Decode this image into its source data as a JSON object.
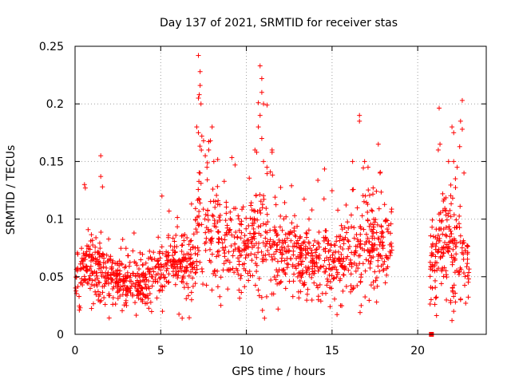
{
  "chart_data": {
    "type": "scatter",
    "title": "Day 137 of 2021, SRMTID for receiver stas",
    "xlabel": "GPS time / hours",
    "ylabel": "SRMTID / TECUs",
    "xlim": [
      0,
      24
    ],
    "ylim": [
      0,
      0.25
    ],
    "xticks": [
      0,
      5,
      10,
      15,
      20
    ],
    "yticks": [
      0,
      0.05,
      0.1,
      0.15,
      0.2,
      0.25
    ],
    "xtick_labels": [
      "0",
      "5",
      "10",
      "15",
      "20"
    ],
    "ytick_labels": [
      "0",
      "0.05",
      "0.1",
      "0.15",
      "0.2",
      "0.25"
    ],
    "grid": true,
    "marker": "+",
    "color": "#ff0000",
    "series": [
      {
        "name": "SRMTID",
        "segments": [
          {
            "x_start": 0.0,
            "x_end": 18.5,
            "baseline": [
              [
                0,
                0.05
              ],
              [
                1,
                0.055
              ],
              [
                2,
                0.052
              ],
              [
                3,
                0.046
              ],
              [
                4,
                0.043
              ],
              [
                5,
                0.055
              ],
              [
                6,
                0.062
              ],
              [
                6.9,
                0.06
              ],
              [
                7.3,
                0.1
              ],
              [
                8,
                0.085
              ],
              [
                9,
                0.078
              ],
              [
                10,
                0.072
              ],
              [
                10.6,
                0.085
              ],
              [
                11.5,
                0.08
              ],
              [
                12,
                0.075
              ],
              [
                13,
                0.065
              ],
              [
                14,
                0.068
              ],
              [
                15,
                0.063
              ],
              [
                16,
                0.066
              ],
              [
                17,
                0.08
              ],
              [
                18.5,
                0.07
              ]
            ],
            "spread": [
              [
                0,
                0.012
              ],
              [
                1,
                0.014
              ],
              [
                2,
                0.013
              ],
              [
                3,
                0.011
              ],
              [
                4,
                0.01
              ],
              [
                5,
                0.012
              ],
              [
                6,
                0.014
              ],
              [
                7,
                0.016
              ],
              [
                7.3,
                0.03
              ],
              [
                8,
                0.022
              ],
              [
                9,
                0.018
              ],
              [
                10,
                0.018
              ],
              [
                10.6,
                0.024
              ],
              [
                11.5,
                0.02
              ],
              [
                12,
                0.018
              ],
              [
                13,
                0.015
              ],
              [
                14,
                0.016
              ],
              [
                15,
                0.015
              ],
              [
                16,
                0.017
              ],
              [
                17,
                0.02
              ],
              [
                18.5,
                0.018
              ]
            ],
            "count": 1400
          },
          {
            "x_start": 20.7,
            "x_end": 23.0,
            "baseline": [
              [
                20.7,
                0.06
              ],
              [
                21.5,
                0.085
              ],
              [
                22.0,
                0.075
              ],
              [
                22.5,
                0.07
              ],
              [
                23.0,
                0.065
              ]
            ],
            "spread": [
              [
                20.7,
                0.018
              ],
              [
                21.5,
                0.025
              ],
              [
                22.0,
                0.022
              ],
              [
                22.5,
                0.024
              ],
              [
                23.0,
                0.02
              ]
            ],
            "count": 190
          }
        ],
        "peaks": [
          [
            7.2,
            0.242
          ],
          [
            7.3,
            0.228
          ],
          [
            7.3,
            0.216
          ],
          [
            7.25,
            0.208
          ],
          [
            7.2,
            0.205
          ],
          [
            7.35,
            0.2
          ],
          [
            7.1,
            0.18
          ],
          [
            7.2,
            0.175
          ],
          [
            7.4,
            0.172
          ],
          [
            7.5,
            0.168
          ],
          [
            8.0,
            0.18
          ],
          [
            7.9,
            0.168
          ],
          [
            7.8,
            0.16
          ],
          [
            7.6,
            0.155
          ],
          [
            8.1,
            0.15
          ],
          [
            7.7,
            0.145
          ],
          [
            7.3,
            0.14
          ],
          [
            10.8,
            0.233
          ],
          [
            10.9,
            0.222
          ],
          [
            10.9,
            0.21
          ],
          [
            10.7,
            0.201
          ],
          [
            11.0,
            0.2
          ],
          [
            10.8,
            0.19
          ],
          [
            10.7,
            0.18
          ],
          [
            10.9,
            0.17
          ],
          [
            10.6,
            0.158
          ],
          [
            10.5,
            0.16
          ],
          [
            11.5,
            0.16
          ],
          [
            11.5,
            0.158
          ],
          [
            11.0,
            0.15
          ],
          [
            11.2,
            0.145
          ],
          [
            11.4,
            0.141
          ],
          [
            1.5,
            0.155
          ],
          [
            1.5,
            0.137
          ],
          [
            1.6,
            0.128
          ],
          [
            0.55,
            0.13
          ],
          [
            0.6,
            0.127
          ],
          [
            16.6,
            0.19
          ],
          [
            16.6,
            0.185
          ],
          [
            17.7,
            0.165
          ],
          [
            16.2,
            0.15
          ],
          [
            16.9,
            0.15
          ],
          [
            17.1,
            0.145
          ],
          [
            17.8,
            0.14
          ],
          [
            22.0,
            0.18
          ],
          [
            22.1,
            0.175
          ],
          [
            22.6,
            0.203
          ],
          [
            22.5,
            0.185
          ],
          [
            22.6,
            0.178
          ],
          [
            21.3,
            0.165
          ],
          [
            21.2,
            0.16
          ],
          [
            21.8,
            0.15
          ],
          [
            22.1,
            0.15
          ],
          [
            22.3,
            0.145
          ],
          [
            22.7,
            0.14
          ],
          [
            22.2,
            0.135
          ]
        ],
        "lows": [
          [
            0.25,
            0.021
          ],
          [
            0.3,
            0.023
          ],
          [
            5.1,
            0.02
          ],
          [
            2.2,
            0.026
          ],
          [
            3.0,
            0.025
          ],
          [
            4.2,
            0.027
          ],
          [
            6.8,
            0.03
          ],
          [
            15.5,
            0.025
          ],
          [
            16.7,
            0.025
          ],
          [
            17.6,
            0.028
          ],
          [
            14.2,
            0.03
          ],
          [
            21.0,
            0.026
          ],
          [
            22.0,
            0.012
          ],
          [
            22.1,
            0.02
          ],
          [
            22.2,
            0.028
          ],
          [
            22.5,
            0.03
          ],
          [
            22.8,
            0.027
          ]
        ],
        "square_marker": [
          20.8,
          0.0
        ]
      }
    ]
  }
}
